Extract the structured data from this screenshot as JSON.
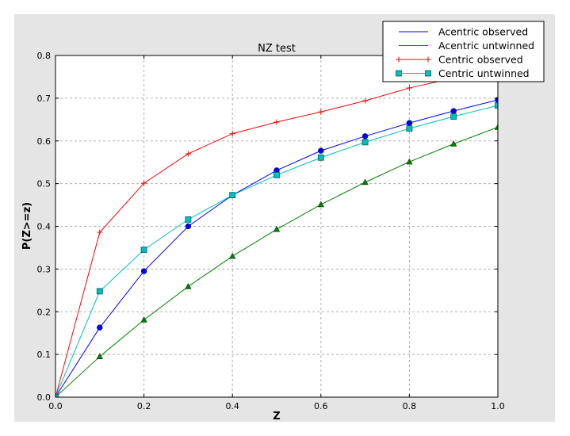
{
  "chart_data": {
    "type": "line",
    "title": "NZ test",
    "xlabel": "Z",
    "ylabel": "P(Z>=z)",
    "xlim": [
      0.0,
      1.0
    ],
    "ylim": [
      0.0,
      0.8
    ],
    "grid": true,
    "legend_position": "top-right",
    "xticks": [
      "0.0",
      "0.2",
      "0.4",
      "0.6",
      "0.8",
      "1.0"
    ],
    "yticks": [
      "0.0",
      "0.1",
      "0.2",
      "0.3",
      "0.4",
      "0.5",
      "0.6",
      "0.7",
      "0.8"
    ],
    "x": [
      0.0,
      0.1,
      0.2,
      0.3,
      0.4,
      0.5,
      0.6,
      0.7,
      0.8,
      0.9,
      1.0
    ],
    "series": [
      {
        "name": "Acentric observed",
        "color": "#0000ff",
        "marker": "circle",
        "values": [
          0.0,
          0.163,
          0.295,
          0.4,
          0.473,
          0.531,
          0.577,
          0.611,
          0.642,
          0.67,
          0.696
        ]
      },
      {
        "name": "Acentric untwinned",
        "color": "#008000",
        "marker": "triangle",
        "values": [
          0.0,
          0.095,
          0.181,
          0.259,
          0.33,
          0.393,
          0.451,
          0.503,
          0.551,
          0.593,
          0.632
        ]
      },
      {
        "name": "Centric observed",
        "color": "#ff0000",
        "marker": "plus",
        "values": [
          0.0,
          0.386,
          0.501,
          0.57,
          0.617,
          0.644,
          0.668,
          0.694,
          0.724,
          0.747,
          0.767
        ]
      },
      {
        "name": "Centric untwinned",
        "color": "#00bfbf",
        "marker": "square",
        "values": [
          0.0,
          0.248,
          0.345,
          0.416,
          0.473,
          0.52,
          0.561,
          0.597,
          0.629,
          0.657,
          0.683
        ]
      }
    ]
  },
  "colors": {
    "figure_background": "#e5e5e5",
    "axes_background": "#ffffff"
  }
}
